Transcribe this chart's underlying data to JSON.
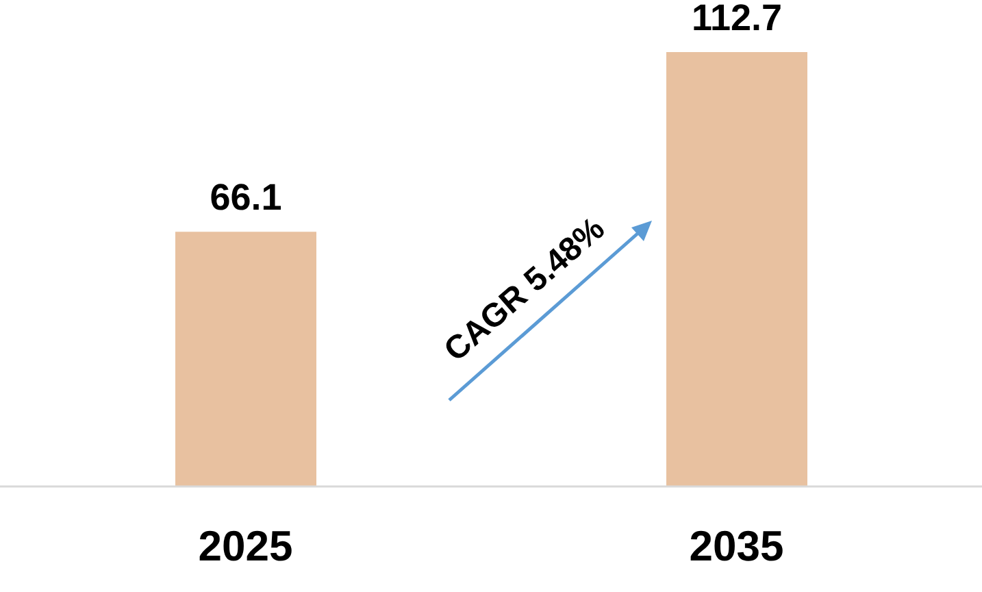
{
  "chart_data": {
    "type": "bar",
    "categories": [
      "2025",
      "2035"
    ],
    "values": [
      66.1,
      112.7
    ],
    "color": "#e8c1a0",
    "data_labels": true,
    "tick_labels": "x",
    "annotations": [
      "CAGR 5.48%"
    ]
  }
}
